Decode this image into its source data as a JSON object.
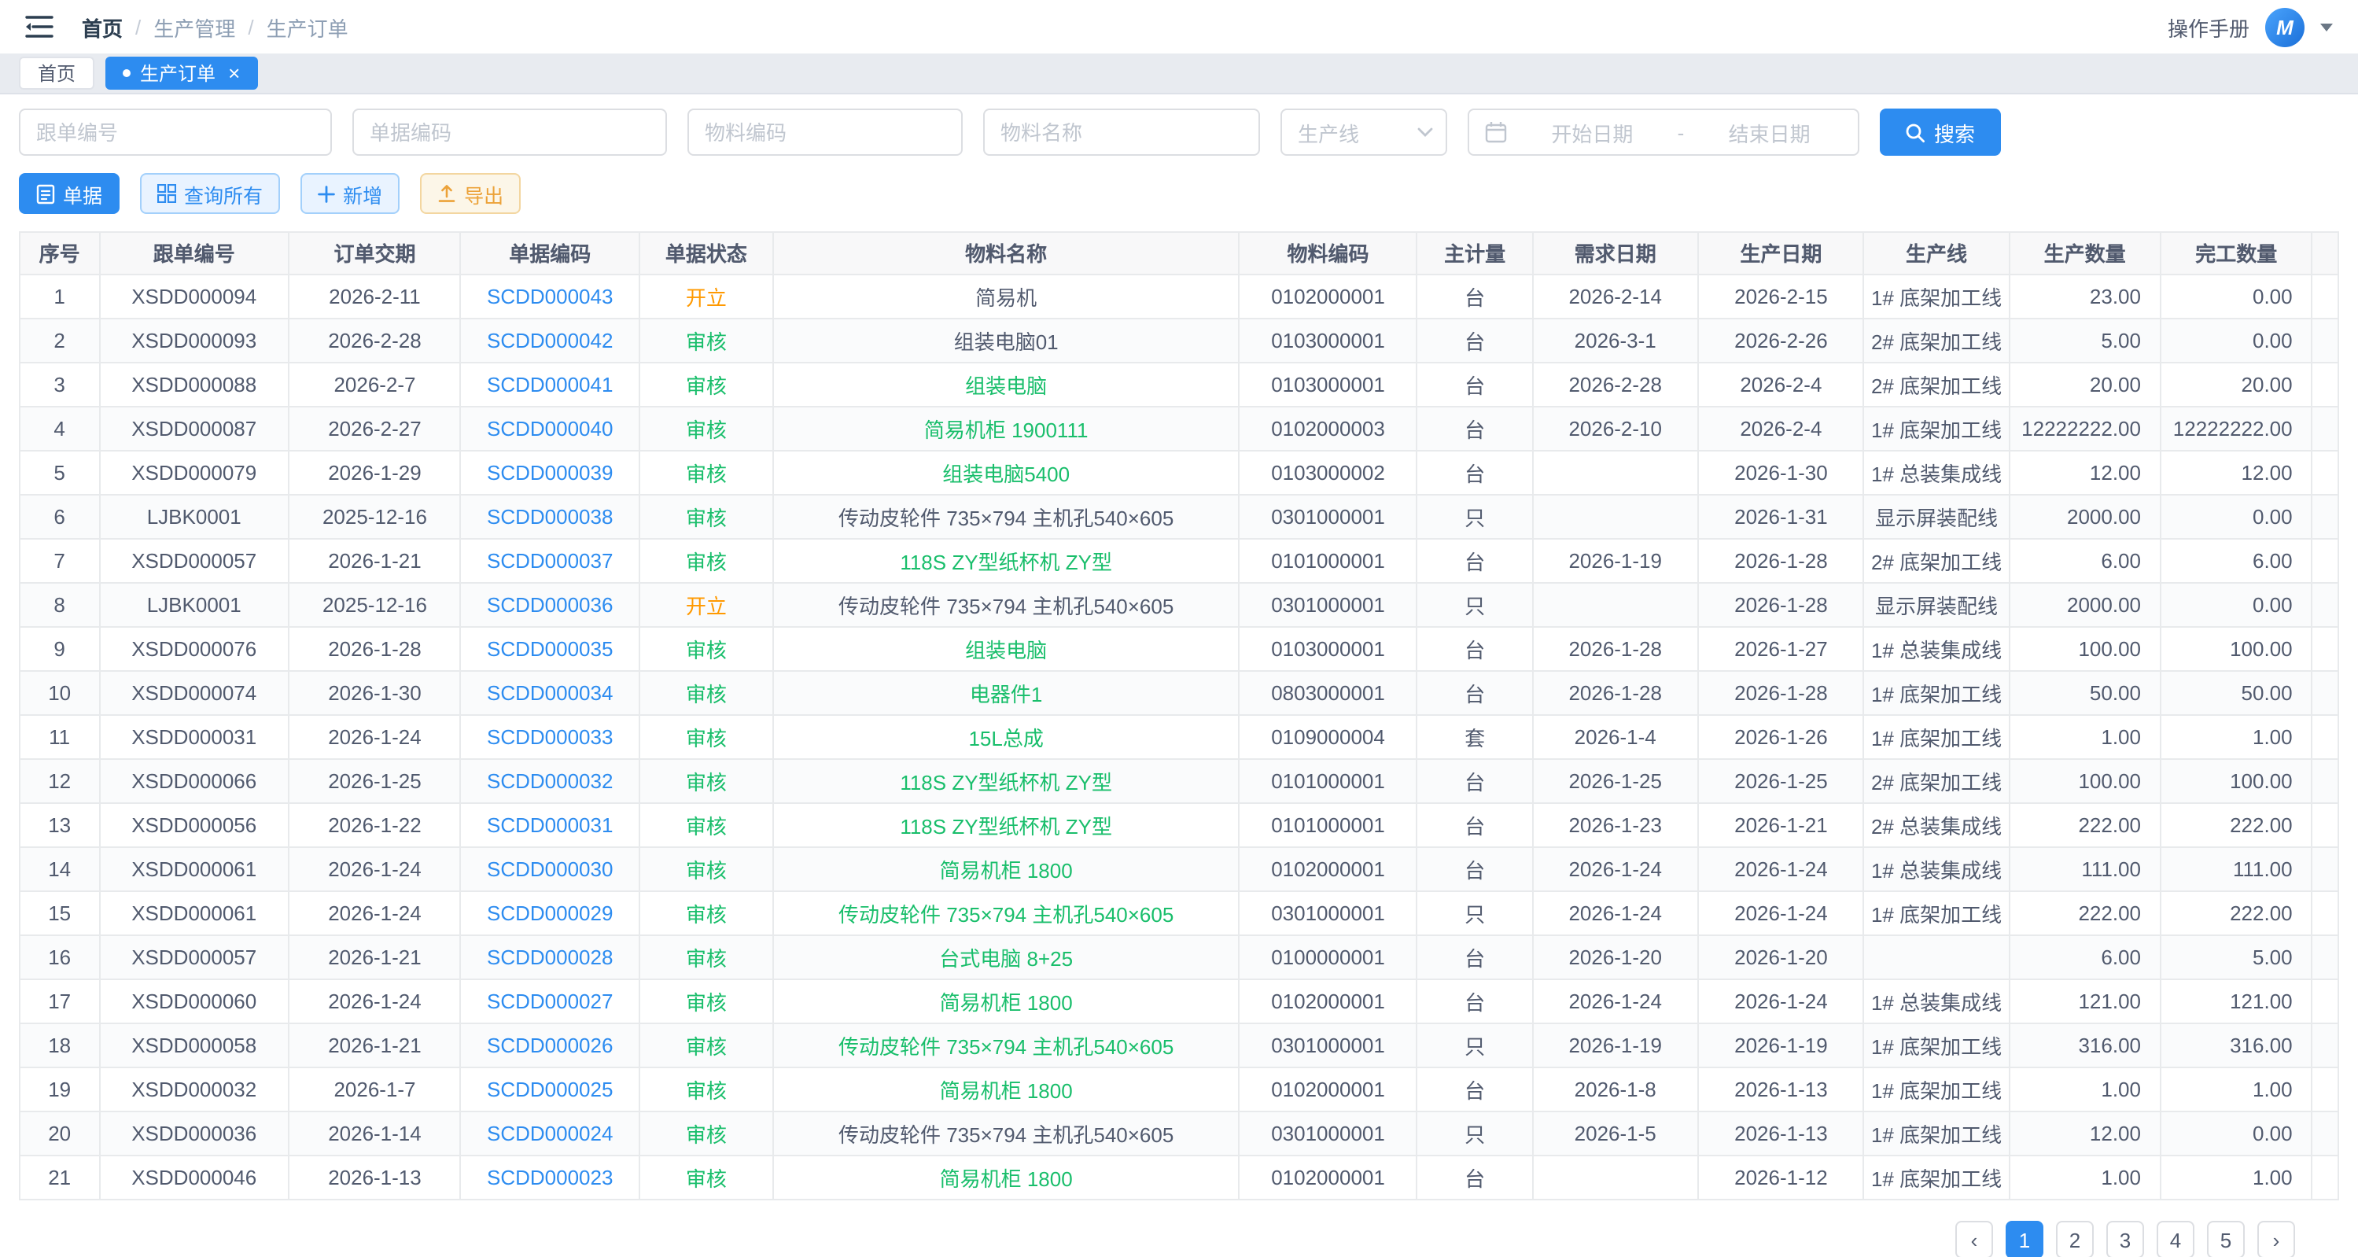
{
  "topbar": {
    "breadcrumb": {
      "home": "首页",
      "section": "生产管理",
      "current": "生产订单",
      "separator": "/"
    },
    "manual_label": "操作手册",
    "avatar_text": "M"
  },
  "tabs": {
    "home_label": "首页",
    "active_label": "生产订单",
    "close_icon": "×"
  },
  "filters": {
    "follow_no": "跟单编号",
    "doc_code": "单据编码",
    "material_code": "物料编码",
    "material_name": "物料名称",
    "line": "生产线",
    "start_date": "开始日期",
    "separator": "-",
    "end_date": "结束日期",
    "search": "搜索"
  },
  "toolbar": {
    "doc": "单据",
    "query_all": "查询所有",
    "add": "新增",
    "export": "导出"
  },
  "colors": {
    "accent": "#2d8cf0",
    "status_open": "#ff9900",
    "status_approved": "#19be6b",
    "export_button": "#e6a23c"
  },
  "table": {
    "columns": [
      "序号",
      "跟单编号",
      "订单交期",
      "单据编码",
      "单据状态",
      "物料名称",
      "物料编码",
      "主计量",
      "需求日期",
      "生产日期",
      "生产线",
      "生产数量",
      "完工数量"
    ],
    "rows": [
      {
        "no": "1",
        "follow_no": "XSDD000094",
        "order_date": "2026-2-11",
        "doc_code": "SCDD000043",
        "status": "开立",
        "status_type": "open",
        "material_name": "简易机",
        "name_green": false,
        "material_code": "0102000001",
        "unit": "台",
        "demand_date": "2026-2-14",
        "prod_date": "2026-2-15",
        "line": "1# 底架加工线",
        "qty": "23.00",
        "done_qty": "0.00"
      },
      {
        "no": "2",
        "follow_no": "XSDD000093",
        "order_date": "2026-2-28",
        "doc_code": "SCDD000042",
        "status": "审核",
        "status_type": "approved",
        "material_name": "组装电脑01",
        "name_green": false,
        "material_code": "0103000001",
        "unit": "台",
        "demand_date": "2026-3-1",
        "prod_date": "2026-2-26",
        "line": "2# 底架加工线",
        "qty": "5.00",
        "done_qty": "0.00"
      },
      {
        "no": "3",
        "follow_no": "XSDD000088",
        "order_date": "2026-2-7",
        "doc_code": "SCDD000041",
        "status": "审核",
        "status_type": "approved",
        "material_name": "组装电脑",
        "name_green": true,
        "material_code": "0103000001",
        "unit": "台",
        "demand_date": "2026-2-28",
        "prod_date": "2026-2-4",
        "line": "2# 底架加工线",
        "qty": "20.00",
        "done_qty": "20.00"
      },
      {
        "no": "4",
        "follow_no": "XSDD000087",
        "order_date": "2026-2-27",
        "doc_code": "SCDD000040",
        "status": "审核",
        "status_type": "approved",
        "material_name": "简易机柜 1900111",
        "name_green": true,
        "material_code": "0102000003",
        "unit": "台",
        "demand_date": "2026-2-10",
        "prod_date": "2026-2-4",
        "line": "1# 底架加工线",
        "qty": "12222222.00",
        "done_qty": "12222222.00"
      },
      {
        "no": "5",
        "follow_no": "XSDD000079",
        "order_date": "2026-1-29",
        "doc_code": "SCDD000039",
        "status": "审核",
        "status_type": "approved",
        "material_name": "组装电脑5400",
        "name_green": true,
        "material_code": "0103000002",
        "unit": "台",
        "demand_date": "",
        "prod_date": "2026-1-30",
        "line": "1# 总装集成线",
        "qty": "12.00",
        "done_qty": "12.00"
      },
      {
        "no": "6",
        "follow_no": "LJBK0001",
        "order_date": "2025-12-16",
        "doc_code": "SCDD000038",
        "status": "审核",
        "status_type": "approved",
        "material_name": "传动皮轮件 735×794 主机孔540×605",
        "name_green": false,
        "material_code": "0301000001",
        "unit": "只",
        "demand_date": "",
        "prod_date": "2026-1-31",
        "line": "显示屏装配线",
        "qty": "2000.00",
        "done_qty": "0.00"
      },
      {
        "no": "7",
        "follow_no": "XSDD000057",
        "order_date": "2026-1-21",
        "doc_code": "SCDD000037",
        "status": "审核",
        "status_type": "approved",
        "material_name": "118S ZY型纸杯机 ZY型",
        "name_green": true,
        "material_code": "0101000001",
        "unit": "台",
        "demand_date": "2026-1-19",
        "prod_date": "2026-1-28",
        "line": "2# 底架加工线",
        "qty": "6.00",
        "done_qty": "6.00"
      },
      {
        "no": "8",
        "follow_no": "LJBK0001",
        "order_date": "2025-12-16",
        "doc_code": "SCDD000036",
        "status": "开立",
        "status_type": "open",
        "material_name": "传动皮轮件 735×794 主机孔540×605",
        "name_green": false,
        "material_code": "0301000001",
        "unit": "只",
        "demand_date": "",
        "prod_date": "2026-1-28",
        "line": "显示屏装配线",
        "qty": "2000.00",
        "done_qty": "0.00"
      },
      {
        "no": "9",
        "follow_no": "XSDD000076",
        "order_date": "2026-1-28",
        "doc_code": "SCDD000035",
        "status": "审核",
        "status_type": "approved",
        "material_name": "组装电脑",
        "name_green": true,
        "material_code": "0103000001",
        "unit": "台",
        "demand_date": "2026-1-28",
        "prod_date": "2026-1-27",
        "line": "1# 总装集成线",
        "qty": "100.00",
        "done_qty": "100.00"
      },
      {
        "no": "10",
        "follow_no": "XSDD000074",
        "order_date": "2026-1-30",
        "doc_code": "SCDD000034",
        "status": "审核",
        "status_type": "approved",
        "material_name": "电器件1",
        "name_green": true,
        "material_code": "0803000001",
        "unit": "台",
        "demand_date": "2026-1-28",
        "prod_date": "2026-1-28",
        "line": "1# 底架加工线",
        "qty": "50.00",
        "done_qty": "50.00"
      },
      {
        "no": "11",
        "follow_no": "XSDD000031",
        "order_date": "2026-1-24",
        "doc_code": "SCDD000033",
        "status": "审核",
        "status_type": "approved",
        "material_name": "15L总成",
        "name_green": true,
        "material_code": "0109000004",
        "unit": "套",
        "demand_date": "2026-1-4",
        "prod_date": "2026-1-26",
        "line": "1# 底架加工线",
        "qty": "1.00",
        "done_qty": "1.00"
      },
      {
        "no": "12",
        "follow_no": "XSDD000066",
        "order_date": "2026-1-25",
        "doc_code": "SCDD000032",
        "status": "审核",
        "status_type": "approved",
        "material_name": "118S ZY型纸杯机 ZY型",
        "name_green": true,
        "material_code": "0101000001",
        "unit": "台",
        "demand_date": "2026-1-25",
        "prod_date": "2026-1-25",
        "line": "2# 底架加工线",
        "qty": "100.00",
        "done_qty": "100.00"
      },
      {
        "no": "13",
        "follow_no": "XSDD000056",
        "order_date": "2026-1-22",
        "doc_code": "SCDD000031",
        "status": "审核",
        "status_type": "approved",
        "material_name": "118S ZY型纸杯机 ZY型",
        "name_green": true,
        "material_code": "0101000001",
        "unit": "台",
        "demand_date": "2026-1-23",
        "prod_date": "2026-1-21",
        "line": "2# 总装集成线",
        "qty": "222.00",
        "done_qty": "222.00"
      },
      {
        "no": "14",
        "follow_no": "XSDD000061",
        "order_date": "2026-1-24",
        "doc_code": "SCDD000030",
        "status": "审核",
        "status_type": "approved",
        "material_name": "简易机柜 1800",
        "name_green": true,
        "material_code": "0102000001",
        "unit": "台",
        "demand_date": "2026-1-24",
        "prod_date": "2026-1-24",
        "line": "1# 总装集成线",
        "qty": "111.00",
        "done_qty": "111.00"
      },
      {
        "no": "15",
        "follow_no": "XSDD000061",
        "order_date": "2026-1-24",
        "doc_code": "SCDD000029",
        "status": "审核",
        "status_type": "approved",
        "material_name": "传动皮轮件 735×794 主机孔540×605",
        "name_green": true,
        "material_code": "0301000001",
        "unit": "只",
        "demand_date": "2026-1-24",
        "prod_date": "2026-1-24",
        "line": "1# 底架加工线",
        "qty": "222.00",
        "done_qty": "222.00"
      },
      {
        "no": "16",
        "follow_no": "XSDD000057",
        "order_date": "2026-1-21",
        "doc_code": "SCDD000028",
        "status": "审核",
        "status_type": "approved",
        "material_name": "台式电脑 8+25",
        "name_green": true,
        "material_code": "0100000001",
        "unit": "台",
        "demand_date": "2026-1-20",
        "prod_date": "2026-1-20",
        "line": "",
        "qty": "6.00",
        "done_qty": "5.00"
      },
      {
        "no": "17",
        "follow_no": "XSDD000060",
        "order_date": "2026-1-24",
        "doc_code": "SCDD000027",
        "status": "审核",
        "status_type": "approved",
        "material_name": "简易机柜 1800",
        "name_green": true,
        "material_code": "0102000001",
        "unit": "台",
        "demand_date": "2026-1-24",
        "prod_date": "2026-1-24",
        "line": "1# 总装集成线",
        "qty": "121.00",
        "done_qty": "121.00"
      },
      {
        "no": "18",
        "follow_no": "XSDD000058",
        "order_date": "2026-1-21",
        "doc_code": "SCDD000026",
        "status": "审核",
        "status_type": "approved",
        "material_name": "传动皮轮件 735×794 主机孔540×605",
        "name_green": true,
        "material_code": "0301000001",
        "unit": "只",
        "demand_date": "2026-1-19",
        "prod_date": "2026-1-19",
        "line": "1# 底架加工线",
        "qty": "316.00",
        "done_qty": "316.00"
      },
      {
        "no": "19",
        "follow_no": "XSDD000032",
        "order_date": "2026-1-7",
        "doc_code": "SCDD000025",
        "status": "审核",
        "status_type": "approved",
        "material_name": "简易机柜 1800",
        "name_green": true,
        "material_code": "0102000001",
        "unit": "台",
        "demand_date": "2026-1-8",
        "prod_date": "2026-1-13",
        "line": "1# 底架加工线",
        "qty": "1.00",
        "done_qty": "1.00"
      },
      {
        "no": "20",
        "follow_no": "XSDD000036",
        "order_date": "2026-1-14",
        "doc_code": "SCDD000024",
        "status": "审核",
        "status_type": "approved",
        "material_name": "传动皮轮件 735×794 主机孔540×605",
        "name_green": false,
        "material_code": "0301000001",
        "unit": "只",
        "demand_date": "2026-1-5",
        "prod_date": "2026-1-13",
        "line": "1# 底架加工线",
        "qty": "12.00",
        "done_qty": "0.00"
      },
      {
        "no": "21",
        "follow_no": "XSDD000046",
        "order_date": "2026-1-13",
        "doc_code": "SCDD000023",
        "status": "审核",
        "status_type": "approved",
        "material_name": "简易机柜 1800",
        "name_green": true,
        "material_code": "0102000001",
        "unit": "台",
        "demand_date": "",
        "prod_date": "2026-1-12",
        "line": "1# 底架加工线",
        "qty": "1.00",
        "done_qty": "1.00"
      }
    ]
  },
  "pagination": {
    "prev_icon": "‹",
    "pages": [
      "1",
      "2",
      "3",
      "4",
      "5"
    ],
    "active": "1",
    "next_icon": "›"
  }
}
